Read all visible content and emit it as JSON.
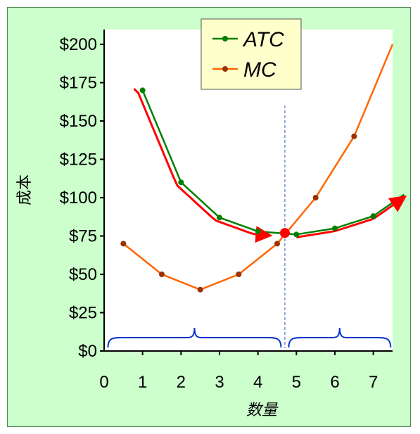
{
  "chart_data": {
    "type": "line",
    "xlabel": "数量",
    "ylabel": "成本",
    "xlim": [
      0,
      7.5
    ],
    "ylim": [
      0,
      200
    ],
    "x_ticks": [
      "0",
      "1",
      "2",
      "3",
      "4",
      "5",
      "6",
      "7"
    ],
    "y_ticks": [
      "$0",
      "$25",
      "$50",
      "$75",
      "$100",
      "$125",
      "$150",
      "$175",
      "$200"
    ],
    "legend_position": "top-center",
    "series": [
      {
        "name": "ATC",
        "color": "#008000",
        "x": [
          1,
          2,
          3,
          4,
          5,
          6,
          7,
          7.8
        ],
        "y": [
          170,
          110,
          87,
          78,
          76,
          80,
          88,
          102
        ],
        "markers": [
          1,
          2,
          3,
          4,
          5,
          6,
          7
        ]
      },
      {
        "name": "MC",
        "color": "#ff6600",
        "x": [
          0.5,
          1.5,
          2.5,
          3.5,
          4.5,
          5.5,
          6.5,
          7.5
        ],
        "y": [
          70,
          50,
          40,
          50,
          70,
          100,
          140,
          200
        ],
        "markers": [
          0.5,
          1.5,
          2.5,
          3.5,
          4.5,
          5.5,
          6.5
        ]
      }
    ],
    "annotations": {
      "intersection_point": {
        "x": 4.7,
        "y": 77,
        "color": "#ff0000"
      },
      "vertical_line_x": 4.7,
      "trend_color": "#ff0000",
      "bracket_color": "#0033cc"
    }
  }
}
